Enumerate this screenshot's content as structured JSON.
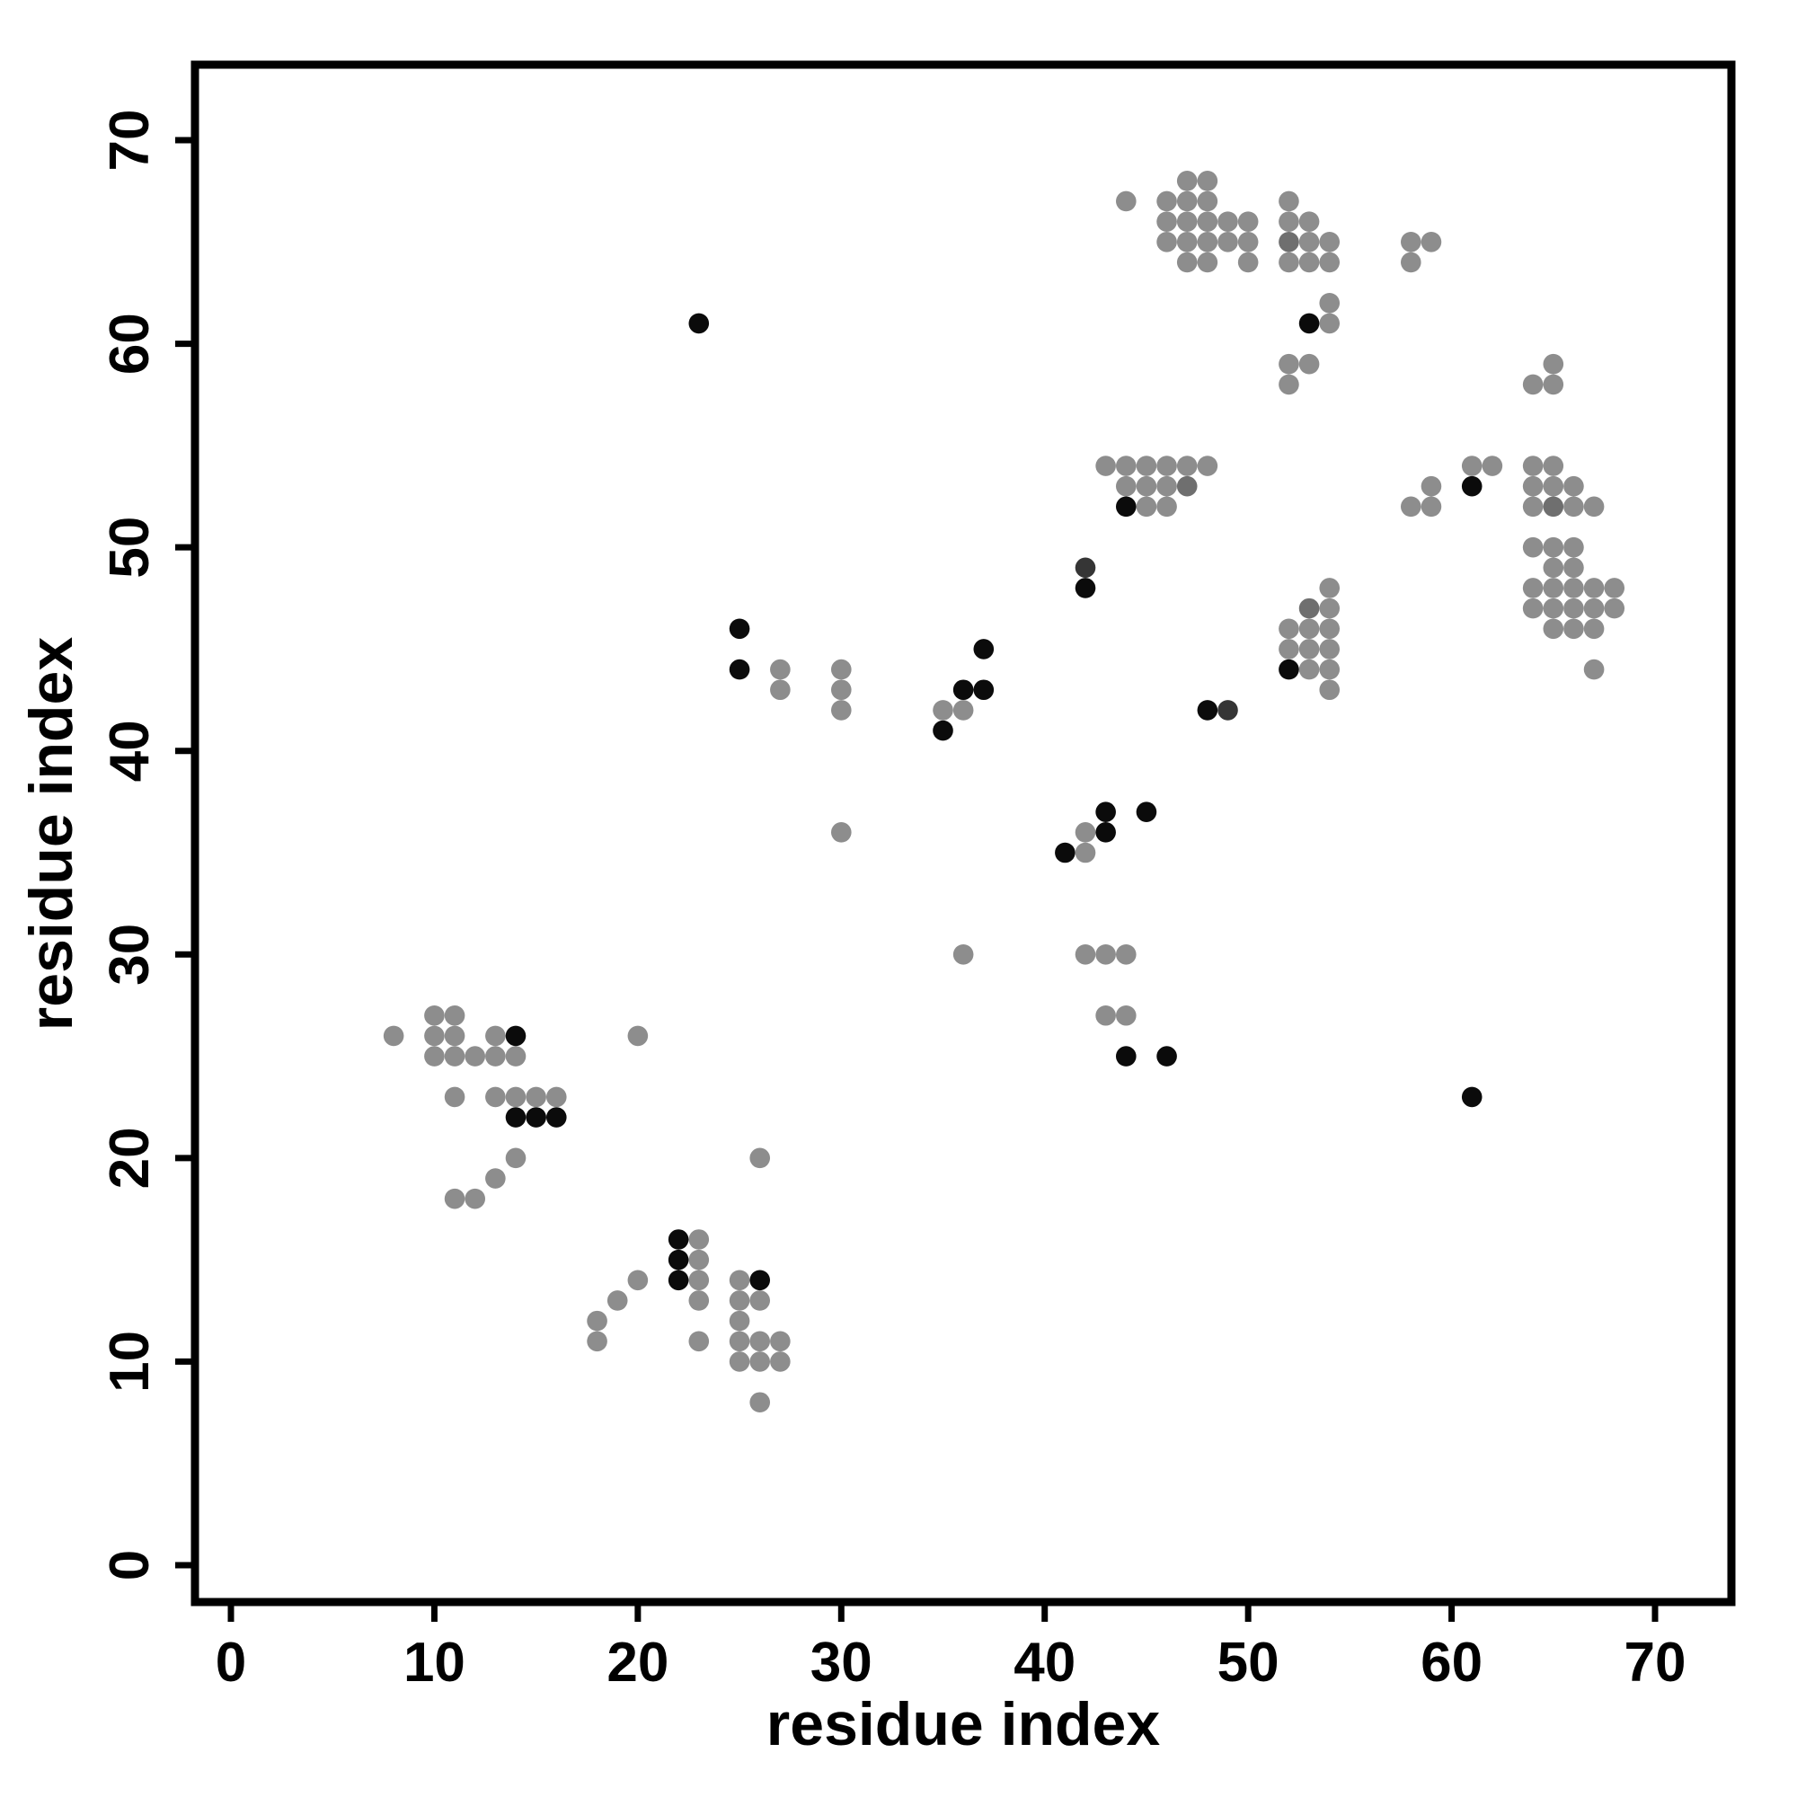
{
  "chart_data": {
    "type": "scatter",
    "title": "",
    "xlabel": "residue index",
    "ylabel": "residue index",
    "xlim": [
      0,
      70
    ],
    "ylim": [
      0,
      70
    ],
    "x_ticks": [
      0,
      10,
      20,
      30,
      40,
      50,
      60,
      70
    ],
    "y_ticks": [
      0,
      10,
      20,
      30,
      40,
      50,
      60,
      70
    ],
    "grid": false,
    "legend": "none",
    "description": "symmetric residue-residue contact map; each point is a contact between residue i and residue j",
    "colors": {
      "g": "#8d8d8d",
      "m": "#6f6f6f",
      "d": "#353535",
      "k": "#0b0b0b"
    },
    "color_legend": {
      "g": "gray contact",
      "m": "medium-gray contact",
      "d": "dark-gray contact",
      "k": "black contact"
    },
    "points": [
      [
        8,
        26,
        "g"
      ],
      [
        10,
        25,
        "g"
      ],
      [
        10,
        26,
        "g"
      ],
      [
        10,
        27,
        "g"
      ],
      [
        11,
        18,
        "g"
      ],
      [
        11,
        23,
        "g"
      ],
      [
        11,
        25,
        "g"
      ],
      [
        11,
        26,
        "g"
      ],
      [
        11,
        27,
        "g"
      ],
      [
        12,
        18,
        "g"
      ],
      [
        12,
        25,
        "g"
      ],
      [
        13,
        19,
        "g"
      ],
      [
        13,
        23,
        "g"
      ],
      [
        13,
        25,
        "g"
      ],
      [
        13,
        26,
        "g"
      ],
      [
        14,
        20,
        "g"
      ],
      [
        14,
        22,
        "k"
      ],
      [
        14,
        23,
        "g"
      ],
      [
        14,
        25,
        "g"
      ],
      [
        14,
        26,
        "k"
      ],
      [
        15,
        22,
        "k"
      ],
      [
        15,
        23,
        "g"
      ],
      [
        16,
        22,
        "k"
      ],
      [
        16,
        23,
        "g"
      ],
      [
        20,
        26,
        "g"
      ],
      [
        23,
        61,
        "k"
      ],
      [
        25,
        44,
        "k"
      ],
      [
        25,
        46,
        "k"
      ],
      [
        27,
        43,
        "g"
      ],
      [
        27,
        44,
        "g"
      ],
      [
        30,
        36,
        "g"
      ],
      [
        30,
        42,
        "g"
      ],
      [
        30,
        43,
        "g"
      ],
      [
        30,
        44,
        "g"
      ],
      [
        35,
        41,
        "k"
      ],
      [
        35,
        42,
        "g"
      ],
      [
        36,
        42,
        "g"
      ],
      [
        36,
        43,
        "k"
      ],
      [
        37,
        43,
        "k"
      ],
      [
        37,
        45,
        "k"
      ],
      [
        42,
        48,
        "k"
      ],
      [
        42,
        49,
        "d"
      ],
      [
        43,
        54,
        "g"
      ],
      [
        44,
        54,
        "g"
      ],
      [
        45,
        54,
        "g"
      ],
      [
        46,
        54,
        "g"
      ],
      [
        47,
        54,
        "g"
      ],
      [
        48,
        54,
        "g"
      ],
      [
        44,
        53,
        "g"
      ],
      [
        45,
        53,
        "g"
      ],
      [
        46,
        53,
        "g"
      ],
      [
        47,
        53,
        "m"
      ],
      [
        44,
        52,
        "k"
      ],
      [
        45,
        52,
        "g"
      ],
      [
        46,
        52,
        "g"
      ],
      [
        44,
        67,
        "g"
      ],
      [
        46,
        67,
        "g"
      ],
      [
        47,
        67,
        "g"
      ],
      [
        48,
        67,
        "g"
      ],
      [
        47,
        68,
        "g"
      ],
      [
        48,
        68,
        "g"
      ],
      [
        46,
        66,
        "g"
      ],
      [
        47,
        66,
        "g"
      ],
      [
        48,
        66,
        "g"
      ],
      [
        49,
        66,
        "g"
      ],
      [
        50,
        66,
        "g"
      ],
      [
        46,
        65,
        "g"
      ],
      [
        47,
        65,
        "g"
      ],
      [
        48,
        65,
        "g"
      ],
      [
        49,
        65,
        "g"
      ],
      [
        50,
        65,
        "g"
      ],
      [
        47,
        64,
        "g"
      ],
      [
        48,
        64,
        "g"
      ],
      [
        50,
        64,
        "g"
      ],
      [
        52,
        67,
        "g"
      ],
      [
        52,
        66,
        "g"
      ],
      [
        53,
        66,
        "g"
      ],
      [
        52,
        65,
        "m"
      ],
      [
        53,
        65,
        "g"
      ],
      [
        54,
        65,
        "g"
      ],
      [
        52,
        64,
        "g"
      ],
      [
        53,
        64,
        "g"
      ],
      [
        54,
        64,
        "g"
      ],
      [
        52,
        58,
        "g"
      ],
      [
        52,
        59,
        "g"
      ],
      [
        53,
        59,
        "g"
      ],
      [
        53,
        61,
        "k"
      ],
      [
        54,
        61,
        "g"
      ],
      [
        54,
        62,
        "g"
      ],
      [
        58,
        64,
        "g"
      ],
      [
        58,
        65,
        "g"
      ],
      [
        59,
        65,
        "g"
      ],
      [
        26,
        8,
        "g"
      ],
      [
        25,
        10,
        "g"
      ],
      [
        26,
        10,
        "g"
      ],
      [
        27,
        10,
        "g"
      ],
      [
        18,
        11,
        "g"
      ],
      [
        23,
        11,
        "g"
      ],
      [
        25,
        11,
        "g"
      ],
      [
        26,
        11,
        "g"
      ],
      [
        27,
        11,
        "g"
      ],
      [
        18,
        12,
        "g"
      ],
      [
        25,
        12,
        "g"
      ],
      [
        19,
        13,
        "g"
      ],
      [
        23,
        13,
        "g"
      ],
      [
        25,
        13,
        "g"
      ],
      [
        26,
        13,
        "g"
      ],
      [
        20,
        14,
        "g"
      ],
      [
        22,
        14,
        "k"
      ],
      [
        23,
        14,
        "g"
      ],
      [
        25,
        14,
        "g"
      ],
      [
        26,
        14,
        "k"
      ],
      [
        22,
        15,
        "k"
      ],
      [
        23,
        15,
        "g"
      ],
      [
        22,
        16,
        "k"
      ],
      [
        23,
        16,
        "g"
      ],
      [
        26,
        20,
        "g"
      ],
      [
        61,
        23,
        "k"
      ],
      [
        44,
        25,
        "k"
      ],
      [
        46,
        25,
        "k"
      ],
      [
        43,
        27,
        "g"
      ],
      [
        44,
        27,
        "g"
      ],
      [
        36,
        30,
        "g"
      ],
      [
        42,
        30,
        "g"
      ],
      [
        43,
        30,
        "g"
      ],
      [
        44,
        30,
        "g"
      ],
      [
        41,
        35,
        "k"
      ],
      [
        42,
        35,
        "g"
      ],
      [
        42,
        36,
        "g"
      ],
      [
        43,
        36,
        "k"
      ],
      [
        43,
        37,
        "k"
      ],
      [
        45,
        37,
        "k"
      ],
      [
        48,
        42,
        "k"
      ],
      [
        49,
        42,
        "d"
      ],
      [
        54,
        43,
        "g"
      ],
      [
        54,
        44,
        "g"
      ],
      [
        54,
        45,
        "g"
      ],
      [
        54,
        46,
        "g"
      ],
      [
        54,
        47,
        "g"
      ],
      [
        54,
        48,
        "g"
      ],
      [
        53,
        44,
        "g"
      ],
      [
        53,
        45,
        "g"
      ],
      [
        53,
        46,
        "g"
      ],
      [
        53,
        47,
        "m"
      ],
      [
        52,
        44,
        "k"
      ],
      [
        52,
        45,
        "g"
      ],
      [
        52,
        46,
        "g"
      ],
      [
        67,
        44,
        "g"
      ],
      [
        67,
        46,
        "g"
      ],
      [
        67,
        47,
        "g"
      ],
      [
        67,
        48,
        "g"
      ],
      [
        68,
        47,
        "g"
      ],
      [
        68,
        48,
        "g"
      ],
      [
        66,
        46,
        "g"
      ],
      [
        66,
        47,
        "g"
      ],
      [
        66,
        48,
        "g"
      ],
      [
        66,
        49,
        "g"
      ],
      [
        66,
        50,
        "g"
      ],
      [
        65,
        46,
        "g"
      ],
      [
        65,
        47,
        "g"
      ],
      [
        65,
        48,
        "g"
      ],
      [
        65,
        49,
        "g"
      ],
      [
        65,
        50,
        "g"
      ],
      [
        64,
        47,
        "g"
      ],
      [
        64,
        48,
        "g"
      ],
      [
        64,
        50,
        "g"
      ],
      [
        67,
        52,
        "g"
      ],
      [
        66,
        52,
        "g"
      ],
      [
        66,
        53,
        "g"
      ],
      [
        65,
        52,
        "m"
      ],
      [
        65,
        53,
        "g"
      ],
      [
        65,
        54,
        "g"
      ],
      [
        64,
        52,
        "g"
      ],
      [
        64,
        53,
        "g"
      ],
      [
        64,
        54,
        "g"
      ],
      [
        58,
        52,
        "g"
      ],
      [
        59,
        52,
        "g"
      ],
      [
        59,
        53,
        "g"
      ],
      [
        61,
        53,
        "k"
      ],
      [
        61,
        54,
        "g"
      ],
      [
        62,
        54,
        "g"
      ],
      [
        64,
        58,
        "g"
      ],
      [
        65,
        58,
        "g"
      ],
      [
        65,
        59,
        "g"
      ]
    ]
  }
}
